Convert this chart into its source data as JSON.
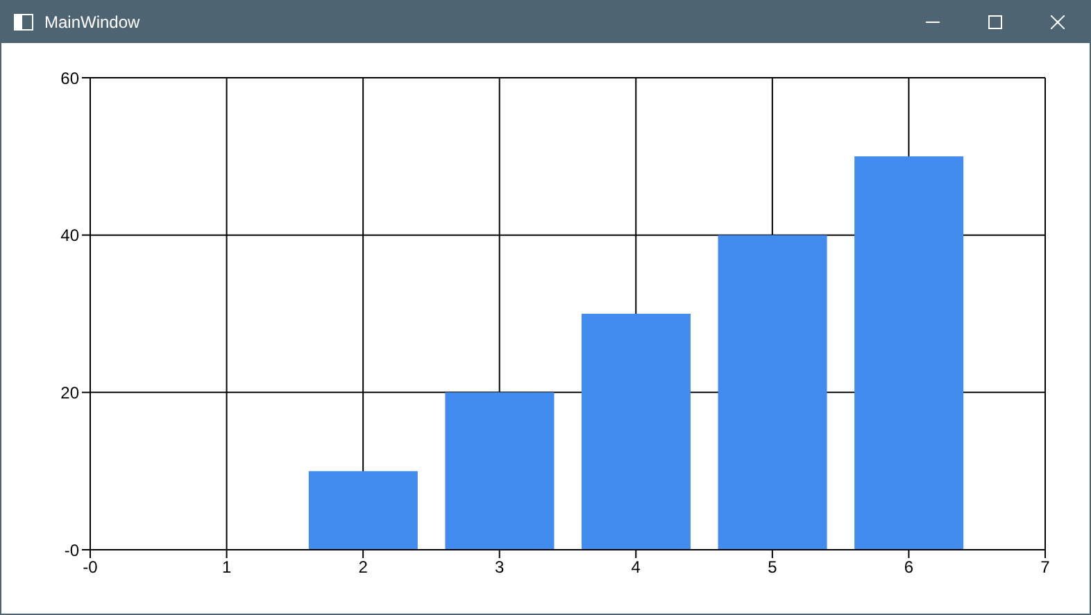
{
  "chart_data": {
    "type": "bar",
    "title": "MainWindow",
    "x": [
      2,
      3,
      4,
      5,
      6
    ],
    "values": [
      10,
      20,
      30,
      40,
      50
    ],
    "color": "#428bef",
    "xlim": [
      0,
      7
    ],
    "xticks": [
      {
        "value": 0,
        "label": "-0"
      },
      1,
      2,
      3,
      4,
      5,
      6,
      7
    ],
    "ylim": [
      0,
      60
    ],
    "yticks": [
      {
        "value": 0,
        "label": "-0"
      },
      20,
      40,
      60
    ],
    "grid": true
  }
}
